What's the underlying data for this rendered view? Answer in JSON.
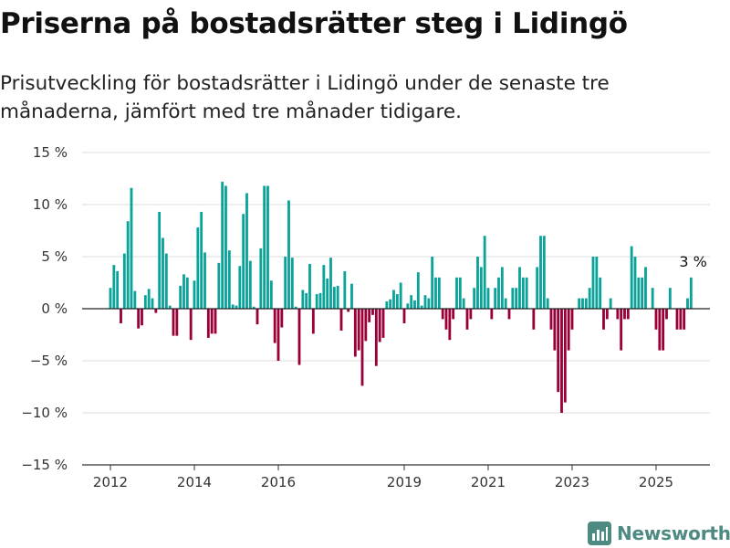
{
  "title": "Priserna på bostadsrätter steg i Lidingö",
  "subtitle": "Prisutveckling för bostadsrätter i Lidingö under de senaste tre månaderna, jämfört med tre månader tidigare.",
  "brand": {
    "name": "Newsworthy",
    "icon": "bar-chart-logo-icon",
    "color": "#4d8a82"
  },
  "colors": {
    "positive": "#0aa39a",
    "negative": "#990039",
    "grid": "#dddddd",
    "zero": "#222222"
  },
  "chart_data": {
    "type": "bar",
    "title": "Priserna på bostadsrätter steg i Lidingö",
    "ylim": [
      -15,
      15
    ],
    "y_ticks": [
      15,
      10,
      5,
      0,
      -5,
      -10,
      -15
    ],
    "y_tick_labels": [
      "15 %",
      "10 %",
      "5 %",
      "0 %",
      "−5 %",
      "−10 %",
      "−15 %"
    ],
    "x_ticks": [
      2012,
      2014,
      2016,
      2019,
      2021,
      2023,
      2025
    ],
    "x_tick_labels": [
      "2012",
      "2014",
      "2016",
      "2019",
      "2021",
      "2023",
      "2025"
    ],
    "grid": true,
    "x_start": 2012.0,
    "x_step_years": 0.0833333,
    "values": [
      2.0,
      4.2,
      3.6,
      -1.4,
      5.3,
      8.4,
      11.6,
      1.7,
      -1.9,
      -1.6,
      1.3,
      1.9,
      1.0,
      -0.4,
      9.3,
      6.8,
      5.3,
      0.3,
      -2.6,
      -2.6,
      2.2,
      3.3,
      3.0,
      -3.0,
      2.7,
      7.8,
      9.3,
      5.4,
      -2.8,
      -2.4,
      -2.4,
      4.4,
      12.2,
      11.8,
      5.6,
      0.4,
      0.3,
      4.1,
      9.1,
      11.1,
      4.6,
      0.2,
      -1.5,
      5.8,
      11.8,
      11.8,
      2.7,
      -3.3,
      -5.0,
      -1.8,
      5.0,
      10.4,
      4.9,
      0.2,
      -5.4,
      1.8,
      1.5,
      4.3,
      -2.4,
      1.4,
      1.5,
      4.2,
      2.9,
      4.9,
      2.1,
      2.2,
      -2.1,
      3.6,
      -0.3,
      2.4,
      -4.6,
      -4.0,
      -7.4,
      -3.1,
      -1.3,
      -0.6,
      -5.5,
      -3.2,
      -2.8,
      0.7,
      0.9,
      1.8,
      1.4,
      2.5,
      -1.4,
      0.5,
      1.3,
      0.8,
      3.5,
      0.3,
      1.3,
      1.0,
      5.0,
      3.0,
      3.0,
      -1.0,
      -2.0,
      -3.0,
      -1.0,
      3.0,
      3.0,
      1.0,
      -2.0,
      -1.0,
      2.0,
      5.0,
      4.0,
      7.0,
      2.0,
      -1.0,
      2.0,
      3.0,
      4.0,
      1.0,
      -1.0,
      2.0,
      2.0,
      4.0,
      3.0,
      3.0,
      0.0,
      -2.0,
      4.0,
      7.0,
      7.0,
      1.0,
      -2.0,
      -4.0,
      -8.0,
      -10.0,
      -9.0,
      -4.0,
      -2.0,
      0.0,
      1.0,
      1.0,
      1.0,
      2.0,
      5.0,
      5.0,
      3.0,
      -2.0,
      -1.0,
      1.0,
      0.0,
      -1.0,
      -4.0,
      -1.0,
      -1.0,
      6.0,
      5.0,
      3.0,
      3.0,
      4.0,
      0.0,
      2.0,
      -2.0,
      -4.0,
      -4.0,
      -1.0,
      2.0,
      0.0,
      -2.0,
      -2.0,
      -2.0,
      1.0,
      3.0
    ],
    "annotations": [
      {
        "text": "3 %",
        "x": 2025.6,
        "y": 3
      }
    ]
  }
}
